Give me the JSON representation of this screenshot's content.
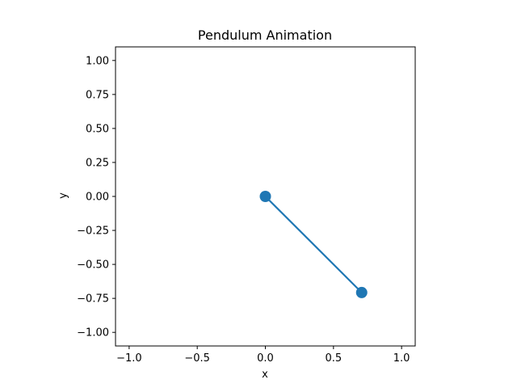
{
  "chart_data": {
    "type": "line",
    "title": "Pendulum Animation",
    "xlabel": "x",
    "ylabel": "y",
    "xlim": [
      -1.1,
      1.1
    ],
    "ylim": [
      -1.1,
      1.1
    ],
    "x_ticks": [
      -1.0,
      -0.5,
      0.0,
      0.5,
      1.0
    ],
    "x_tick_labels": [
      "−1.0",
      "−0.5",
      "0.0",
      "0.5",
      "1.0"
    ],
    "y_ticks": [
      1.0,
      0.75,
      0.5,
      0.25,
      0.0,
      -0.25,
      -0.5,
      -0.75,
      -1.0
    ],
    "y_tick_labels": [
      "1.00",
      "0.75",
      "0.50",
      "0.25",
      "0.00",
      "−0.25",
      "−0.50",
      "−0.75",
      "−1.00"
    ],
    "grid": false,
    "aspect": "equal",
    "series": [
      {
        "x": [
          0.0,
          0.707
        ],
        "y": [
          0.0,
          -0.707
        ],
        "color": "#1f77b4",
        "marker": "circle"
      }
    ]
  }
}
